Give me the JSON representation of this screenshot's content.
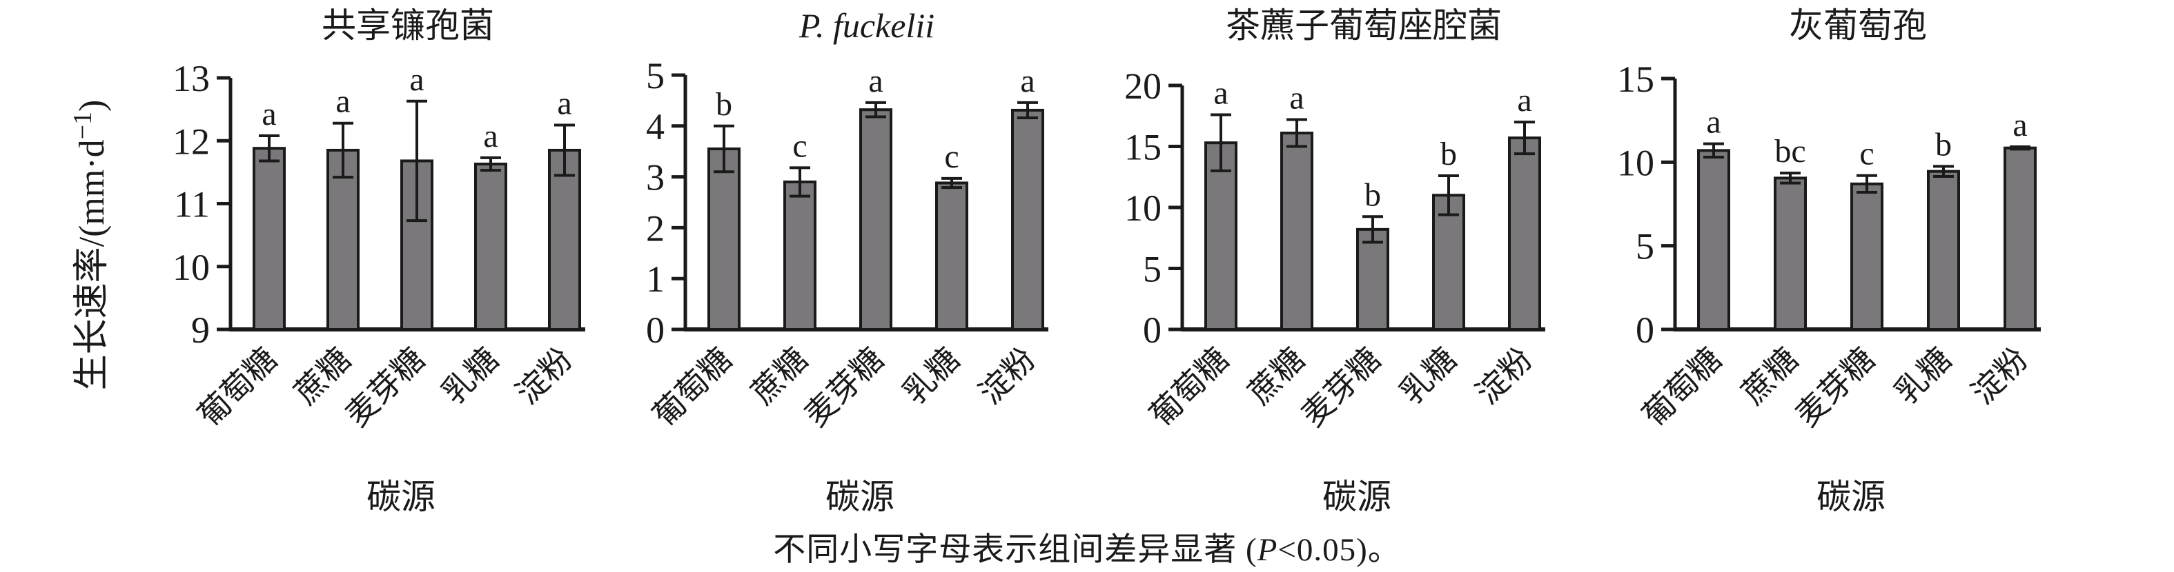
{
  "figure": {
    "caption_pre": "不同小写字母表示组间差异显著 (",
    "caption_italic": "P",
    "caption_post": "<0.05)。"
  },
  "chart_data": {
    "type": "bar",
    "grid": false,
    "legend": "none",
    "categories": [
      "葡萄糖",
      "蔗糖",
      "麦芽糖",
      "乳糖",
      "淀粉"
    ],
    "xlabel": "碳源",
    "ylabel": "生长速率/(mm·d⁻¹)",
    "bar_color": "#7a787a",
    "line_color": "#1a1a1a",
    "panels": [
      {
        "title": "共享镰孢菌",
        "title_italic": false,
        "ylim": [
          9,
          13
        ],
        "yticks": [
          "9",
          "10",
          "11",
          "12",
          "13"
        ],
        "values": [
          11.88,
          11.85,
          11.68,
          11.63,
          11.85
        ],
        "errors": [
          0.2,
          0.43,
          0.95,
          0.1,
          0.4
        ],
        "letters": [
          "a",
          "a",
          "a",
          "a",
          "a"
        ]
      },
      {
        "title": "P. fuckelii",
        "title_italic": true,
        "ylim": [
          0,
          5
        ],
        "yticks": [
          "0",
          "1",
          "2",
          "3",
          "4",
          "5"
        ],
        "values": [
          3.55,
          2.9,
          4.32,
          2.88,
          4.31
        ],
        "errors": [
          0.45,
          0.28,
          0.14,
          0.09,
          0.15
        ],
        "letters": [
          "b",
          "c",
          "a",
          "c",
          "a"
        ]
      },
      {
        "title": "茶藨子葡萄座腔菌",
        "title_italic": false,
        "ylim": [
          0,
          20
        ],
        "yticks": [
          "0",
          "5",
          "10",
          "15",
          "20"
        ],
        "values": [
          15.3,
          16.1,
          8.2,
          11.0,
          15.7
        ],
        "errors": [
          2.3,
          1.1,
          1.05,
          1.6,
          1.3
        ],
        "letters": [
          "a",
          "a",
          "b",
          "b",
          "a"
        ]
      },
      {
        "title": "灰葡萄孢",
        "title_italic": false,
        "ylim": [
          0,
          15
        ],
        "yticks": [
          "0",
          "5",
          "10",
          "15"
        ],
        "values": [
          10.7,
          9.05,
          8.7,
          9.45,
          10.85
        ],
        "errors": [
          0.4,
          0.3,
          0.5,
          0.3,
          0.07
        ],
        "letters": [
          "a",
          "bc",
          "c",
          "b",
          "a"
        ]
      }
    ]
  }
}
